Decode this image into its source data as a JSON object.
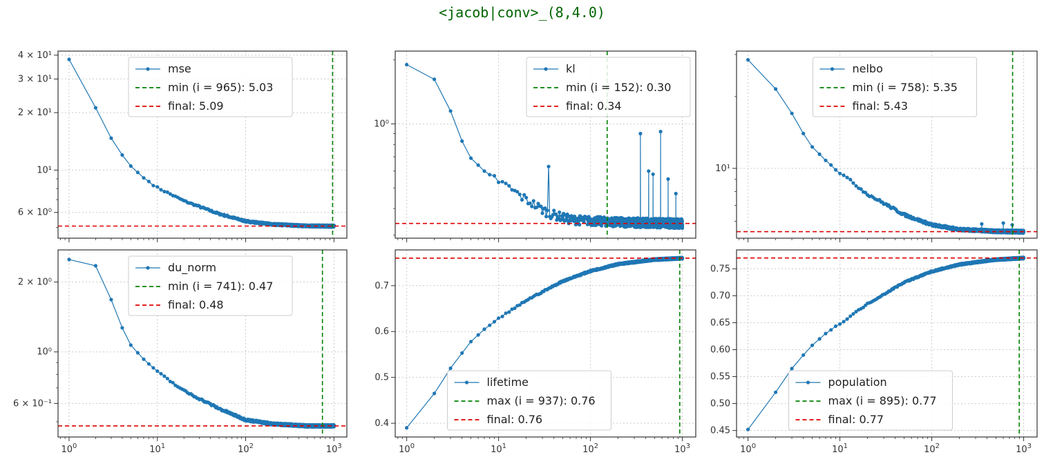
{
  "title": "<jacob|conv>_(8,4.0)",
  "colors": {
    "series": "#1f77b4",
    "best_line": "#008000",
    "final_line": "#e00000",
    "title": "#006400"
  },
  "chart_data": [
    {
      "type": "line",
      "name": "mse",
      "scale_y": "log",
      "scale_x": "log",
      "ylim": [
        4.4,
        42
      ],
      "xlim": [
        0.75,
        1400
      ],
      "yticks": [
        {
          "v": 40,
          "label": "4 × 10¹"
        },
        {
          "v": 30,
          "label": "3 × 10¹"
        },
        {
          "v": 20,
          "label": "2 × 10¹"
        },
        {
          "v": 10,
          "label": "10¹"
        },
        {
          "v": 6,
          "label": "6 × 10⁰"
        }
      ],
      "points": [
        [
          1,
          38
        ],
        [
          2,
          21.2
        ],
        [
          3,
          14.7
        ],
        [
          4,
          12
        ],
        [
          5,
          10.5
        ],
        [
          7,
          9.1
        ],
        [
          10,
          8.1
        ],
        [
          20,
          6.9
        ],
        [
          50,
          5.9
        ],
        [
          100,
          5.4
        ],
        [
          200,
          5.2
        ],
        [
          500,
          5.1
        ],
        [
          1000,
          5.09
        ]
      ],
      "noise": 0.01,
      "best": {
        "label": "min (i = 965): 5.03",
        "x": 965
      },
      "final": {
        "label": "final: 5.09",
        "y": 5.09
      },
      "legend_pos": "top-center",
      "grid": true
    },
    {
      "type": "line",
      "name": "kl",
      "scale_y": "log",
      "scale_x": "log",
      "ylim": [
        0.29,
        2.2
      ],
      "xlim": [
        0.75,
        1400
      ],
      "yticks": [
        {
          "v": 1.0,
          "label": "10⁰"
        }
      ],
      "points": [
        [
          1,
          1.9
        ],
        [
          2,
          1.62
        ],
        [
          3,
          1.15
        ],
        [
          4,
          0.83
        ],
        [
          5,
          0.69
        ],
        [
          7,
          0.6
        ],
        [
          10,
          0.54
        ],
        [
          20,
          0.44
        ],
        [
          35,
          0.38
        ],
        [
          60,
          0.355
        ],
        [
          100,
          0.35
        ],
        [
          200,
          0.345
        ],
        [
          1000,
          0.34
        ]
      ],
      "noise": 0.05,
      "spikes": [
        [
          35,
          0.63
        ],
        [
          350,
          0.9
        ],
        [
          430,
          0.6
        ],
        [
          480,
          0.58
        ],
        [
          580,
          0.92
        ],
        [
          700,
          0.55
        ],
        [
          850,
          0.47
        ]
      ],
      "best": {
        "label": "min (i = 152): 0.30",
        "x": 152
      },
      "final": {
        "label": "final: 0.34",
        "y": 0.34
      },
      "legend_pos": "top-right",
      "grid": true
    },
    {
      "type": "line",
      "name": "nelbo",
      "scale_y": "log",
      "scale_x": "log",
      "ylim": [
        5.1,
        31
      ],
      "xlim": [
        0.75,
        1400
      ],
      "yticks": [
        {
          "v": 10,
          "label": "10¹"
        }
      ],
      "points": [
        [
          1,
          28.5
        ],
        [
          2,
          21.5
        ],
        [
          3,
          17
        ],
        [
          4,
          14
        ],
        [
          5,
          12.3
        ],
        [
          7,
          10.8
        ],
        [
          10,
          9.6
        ],
        [
          20,
          7.8
        ],
        [
          50,
          6.4
        ],
        [
          100,
          5.8
        ],
        [
          200,
          5.55
        ],
        [
          500,
          5.45
        ],
        [
          1000,
          5.43
        ]
      ],
      "noise": 0.012,
      "spikes": [
        [
          350,
          5.85
        ],
        [
          600,
          5.9
        ],
        [
          750,
          5.8
        ]
      ],
      "best": {
        "label": "min (i = 758): 5.35",
        "x": 758
      },
      "final": {
        "label": "final: 5.43",
        "y": 5.43
      },
      "legend_pos": "top-center",
      "grid": true
    },
    {
      "type": "line",
      "name": "du_norm",
      "scale_y": "log",
      "scale_x": "log",
      "ylim": [
        0.43,
        2.75
      ],
      "xlim": [
        0.75,
        1400
      ],
      "yticks": [
        {
          "v": 2,
          "label": "2 × 10⁰"
        },
        {
          "v": 1,
          "label": "10⁰"
        },
        {
          "v": 0.6,
          "label": "6 × 10⁻¹"
        }
      ],
      "points": [
        [
          1,
          2.5
        ],
        [
          2,
          2.35
        ],
        [
          3,
          1.68
        ],
        [
          4,
          1.27
        ],
        [
          5,
          1.07
        ],
        [
          7,
          0.93
        ],
        [
          10,
          0.82
        ],
        [
          20,
          0.68
        ],
        [
          50,
          0.57
        ],
        [
          100,
          0.51
        ],
        [
          200,
          0.49
        ],
        [
          500,
          0.48
        ],
        [
          1000,
          0.48
        ]
      ],
      "noise": 0.01,
      "best": {
        "label": "min (i = 741): 0.47",
        "x": 741
      },
      "final": {
        "label": "final: 0.48",
        "y": 0.48
      },
      "legend_pos": "top-center",
      "grid": true
    },
    {
      "type": "line",
      "name": "lifetime",
      "scale_y": "linear",
      "scale_x": "log",
      "ylim": [
        0.37,
        0.778
      ],
      "xlim": [
        0.75,
        1400
      ],
      "yticks": [
        {
          "v": 0.4,
          "label": "0.4"
        },
        {
          "v": 0.5,
          "label": "0.5"
        },
        {
          "v": 0.6,
          "label": "0.6"
        },
        {
          "v": 0.7,
          "label": "0.7"
        }
      ],
      "points": [
        [
          1,
          0.39
        ],
        [
          2,
          0.465
        ],
        [
          3,
          0.52
        ],
        [
          4,
          0.553
        ],
        [
          5,
          0.578
        ],
        [
          7,
          0.605
        ],
        [
          10,
          0.628
        ],
        [
          20,
          0.668
        ],
        [
          50,
          0.71
        ],
        [
          100,
          0.732
        ],
        [
          200,
          0.747
        ],
        [
          500,
          0.757
        ],
        [
          1000,
          0.76
        ]
      ],
      "noise": 0.0015,
      "best": {
        "label": "max (i = 937): 0.76",
        "x": 937
      },
      "final": {
        "label": "final: 0.76",
        "y": 0.76
      },
      "legend_pos": "bottom-center",
      "grid": true
    },
    {
      "type": "line",
      "name": "population",
      "scale_y": "linear",
      "scale_x": "log",
      "ylim": [
        0.438,
        0.785
      ],
      "xlim": [
        0.75,
        1400
      ],
      "yticks": [
        {
          "v": 0.45,
          "label": "0.45"
        },
        {
          "v": 0.5,
          "label": "0.50"
        },
        {
          "v": 0.55,
          "label": "0.55"
        },
        {
          "v": 0.6,
          "label": "0.60"
        },
        {
          "v": 0.65,
          "label": "0.65"
        },
        {
          "v": 0.7,
          "label": "0.70"
        },
        {
          "v": 0.75,
          "label": "0.75"
        }
      ],
      "points": [
        [
          1,
          0.452
        ],
        [
          2,
          0.521
        ],
        [
          3,
          0.565
        ],
        [
          4,
          0.59
        ],
        [
          5,
          0.608
        ],
        [
          7,
          0.63
        ],
        [
          10,
          0.648
        ],
        [
          20,
          0.685
        ],
        [
          50,
          0.725
        ],
        [
          100,
          0.745
        ],
        [
          200,
          0.758
        ],
        [
          500,
          0.767
        ],
        [
          1000,
          0.77
        ]
      ],
      "noise": 0.0012,
      "best": {
        "label": "max (i = 895): 0.77",
        "x": 895
      },
      "final": {
        "label": "final: 0.77",
        "y": 0.77
      },
      "legend_pos": "bottom-center",
      "grid": true
    }
  ],
  "x_tick_labels": [
    {
      "v": 1,
      "base": "10",
      "exp": "0"
    },
    {
      "v": 10,
      "base": "10",
      "exp": "1"
    },
    {
      "v": 100,
      "base": "10",
      "exp": "2"
    },
    {
      "v": 1000,
      "base": "10",
      "exp": "3"
    }
  ]
}
